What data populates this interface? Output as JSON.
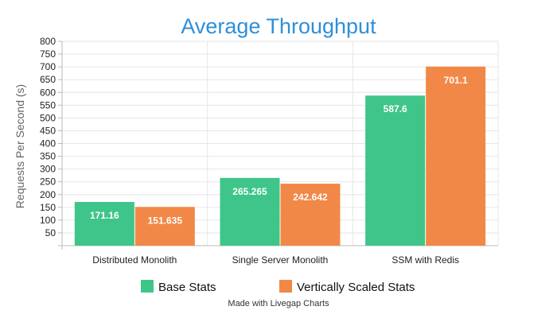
{
  "chart_data": {
    "type": "bar",
    "title": "Average Throughput",
    "ylabel": "Requests Per Second (s)",
    "xlabel": "",
    "ylim": [
      0,
      800
    ],
    "yticks": [
      50,
      100,
      150,
      200,
      250,
      300,
      350,
      400,
      450,
      500,
      550,
      600,
      650,
      700,
      750,
      800
    ],
    "categories": [
      "Distributed Monolith",
      "Single Server Monolith",
      "SSM with Redis"
    ],
    "series": [
      {
        "name": "Base Stats",
        "values": [
          171.16,
          265.265,
          587.6
        ],
        "labels": [
          "171.16",
          "265.265",
          "587.6"
        ],
        "color": "#3fc58a"
      },
      {
        "name": "Vertically Scaled Stats",
        "values": [
          151.635,
          242.642,
          701.1
        ],
        "labels": [
          "151.635",
          "242.642",
          "701.1"
        ],
        "color": "#f28847"
      }
    ],
    "grid": true,
    "legend_position": "bottom",
    "title_color": "#2f8fd8",
    "footer": "Made with Livegap Charts"
  }
}
